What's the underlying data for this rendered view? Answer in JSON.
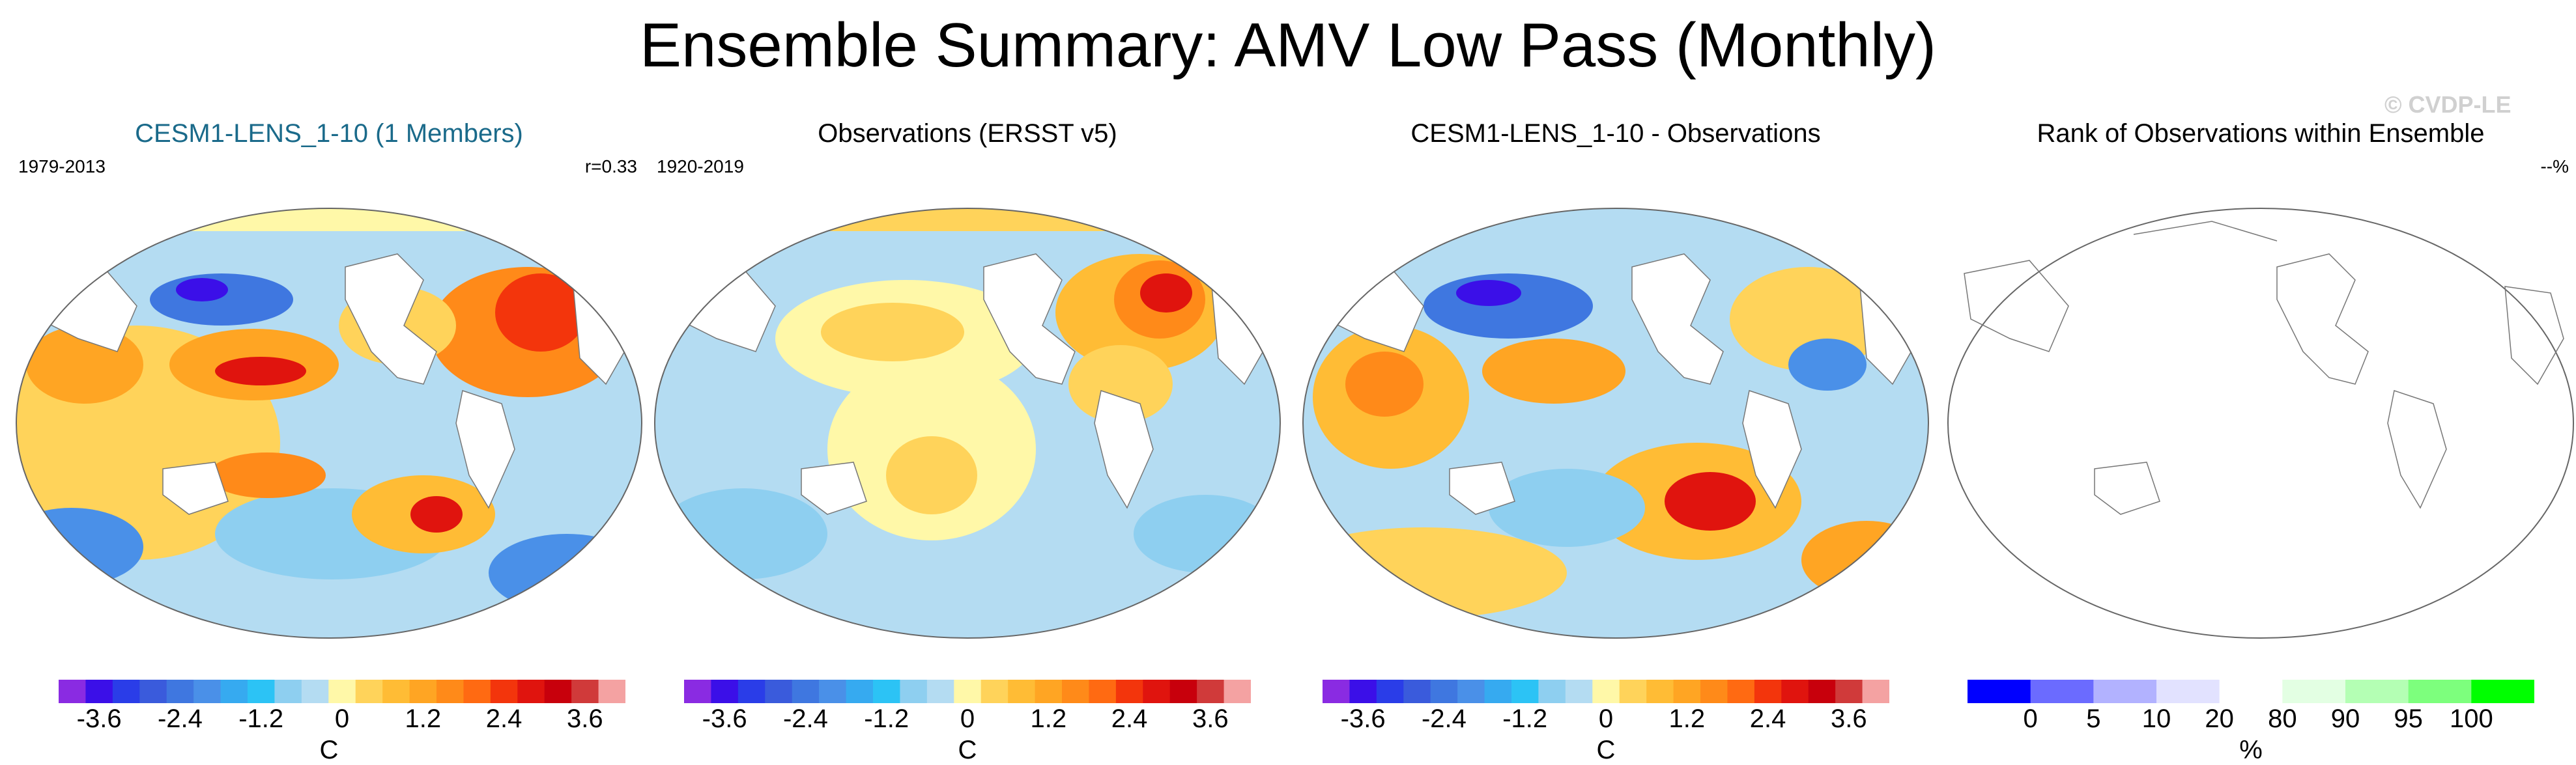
{
  "title": "Ensemble Summary: AMV Low Pass (Monthly)",
  "watermark": "© CVDP-LE",
  "panels": [
    {
      "title": "CESM1-LENS_1-10 (1 Members)",
      "left_label": "1979-2013",
      "right_label": "r=0.33",
      "unit": "C"
    },
    {
      "title": "Observations (ERSST v5)",
      "left_label": "1920-2019",
      "right_label": "",
      "unit": "C"
    },
    {
      "title": "CESM1-LENS_1-10 - Observations",
      "left_label": "",
      "right_label": "",
      "unit": "C"
    },
    {
      "title": "Rank of Observations within Ensemble",
      "left_label": "",
      "right_label": "--%",
      "unit": "%"
    }
  ],
  "diverging_colorbar": {
    "colors": [
      "#8a2be2",
      "#3b0fe8",
      "#2a3de8",
      "#3a5bdc",
      "#3f77e0",
      "#4a90e8",
      "#36aaf0",
      "#2cc3f5",
      "#8ecff0",
      "#b4dcf2",
      "#fff8a8",
      "#ffd35a",
      "#ffbc35",
      "#ffa523",
      "#ff8a19",
      "#ff6a12",
      "#f3350c",
      "#e0140e",
      "#c8000c",
      "#d03a3a",
      "#f4a2a2"
    ],
    "ticks": [
      "-3.6",
      "-2.4",
      "-1.2",
      "0",
      "1.2",
      "2.4",
      "3.6"
    ],
    "tick_values": [
      -3.6,
      -2.4,
      -1.2,
      0,
      1.2,
      2.4,
      3.6
    ],
    "range": [
      -4.2,
      4.2
    ]
  },
  "rank_colorbar": {
    "colors": [
      "#0000ff",
      "#6b6bff",
      "#b2b2ff",
      "#e2e2ff",
      "#ffffff",
      "#e3ffe3",
      "#b4ffb4",
      "#7dff7d",
      "#00ff00"
    ],
    "ticks": [
      "0",
      "5",
      "10",
      "20",
      "80",
      "90",
      "95",
      "100"
    ]
  }
}
